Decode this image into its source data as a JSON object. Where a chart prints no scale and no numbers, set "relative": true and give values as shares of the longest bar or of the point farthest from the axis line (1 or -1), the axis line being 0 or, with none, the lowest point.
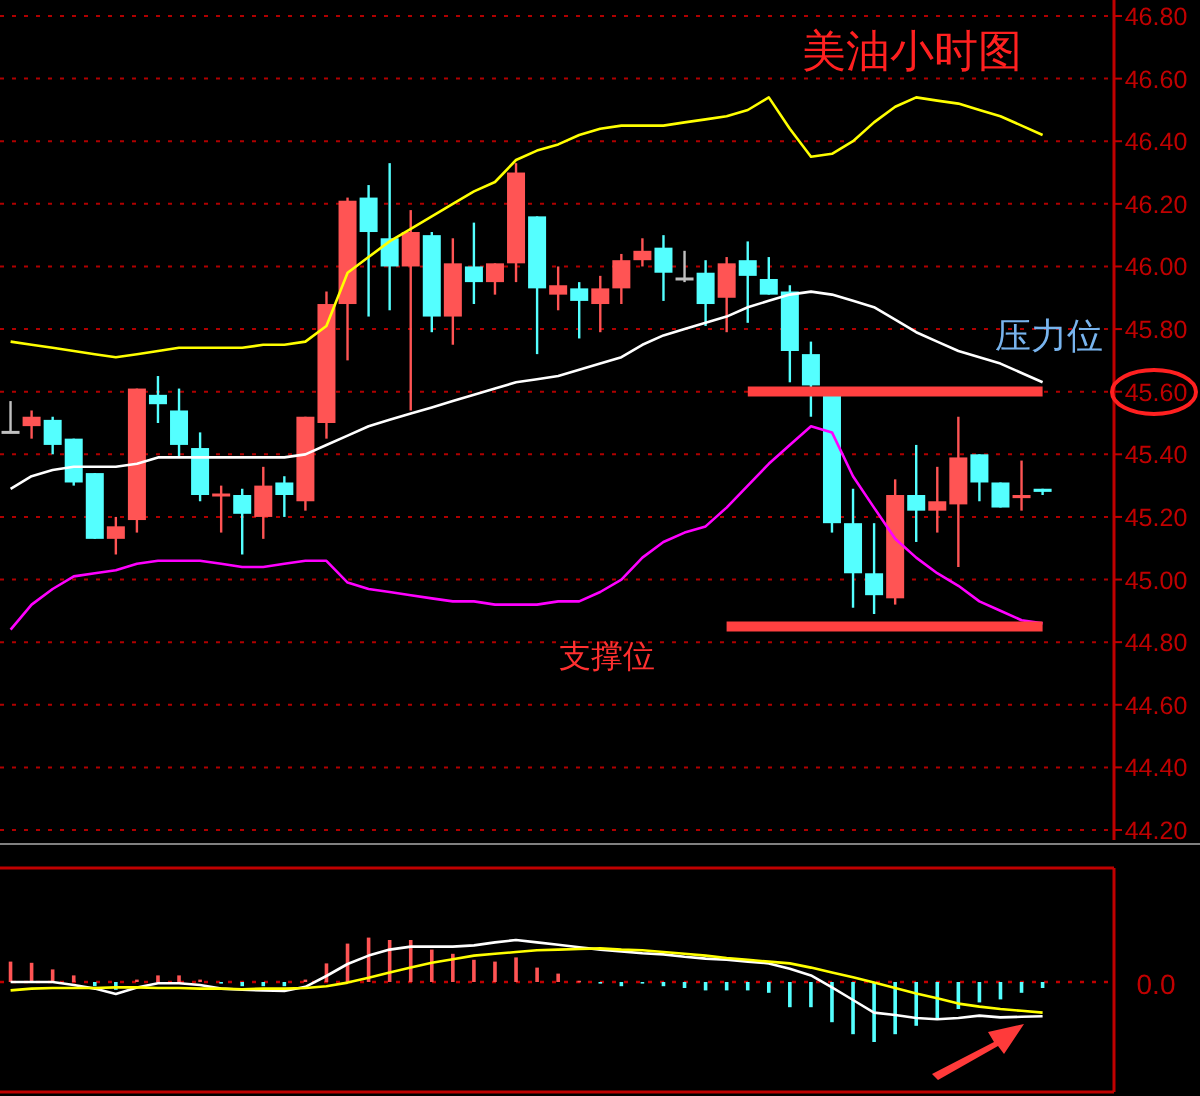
{
  "chart_data": [
    {
      "type": "candlestick",
      "title": "美油小时图",
      "categories": [
        null,
        null,
        null,
        null,
        null,
        null,
        null,
        null,
        null,
        null,
        null,
        null,
        null,
        null,
        null,
        null,
        null,
        null,
        null,
        null,
        null,
        null,
        null,
        null,
        null,
        null,
        null,
        null,
        null,
        null,
        null,
        null,
        null,
        null,
        null,
        null,
        null,
        null,
        null,
        null,
        null,
        null,
        null,
        null,
        null,
        null,
        null,
        null,
        null,
        null
      ],
      "ohlc": [
        [
          45.47,
          45.57,
          45.47,
          45.47
        ],
        [
          45.49,
          45.54,
          45.45,
          45.52
        ],
        [
          45.51,
          45.52,
          45.4,
          45.43
        ],
        [
          45.45,
          45.45,
          45.3,
          45.31
        ],
        [
          45.34,
          45.34,
          45.13,
          45.13
        ],
        [
          45.13,
          45.2,
          45.08,
          45.17
        ],
        [
          45.19,
          45.61,
          45.15,
          45.61
        ],
        [
          45.59,
          45.65,
          45.5,
          45.56
        ],
        [
          45.54,
          45.61,
          45.39,
          45.43
        ],
        [
          45.42,
          45.47,
          45.25,
          45.27
        ],
        [
          45.27,
          45.3,
          45.15,
          45.27
        ],
        [
          45.27,
          45.29,
          45.08,
          45.21
        ],
        [
          45.2,
          45.36,
          45.13,
          45.3
        ],
        [
          45.31,
          45.33,
          45.2,
          45.27
        ],
        [
          45.25,
          45.52,
          45.22,
          45.52
        ],
        [
          45.5,
          45.92,
          45.45,
          45.88
        ],
        [
          45.88,
          46.22,
          45.7,
          46.21
        ],
        [
          46.22,
          46.26,
          45.84,
          46.11
        ],
        [
          46.09,
          46.33,
          45.86,
          46.0
        ],
        [
          46.0,
          46.18,
          45.54,
          46.11
        ],
        [
          46.1,
          46.11,
          45.79,
          45.84
        ],
        [
          45.84,
          46.09,
          45.75,
          46.01
        ],
        [
          46.0,
          46.14,
          45.88,
          45.95
        ],
        [
          45.95,
          46.01,
          45.91,
          46.01
        ],
        [
          46.01,
          46.33,
          45.95,
          46.3
        ],
        [
          46.16,
          46.16,
          45.72,
          45.93
        ],
        [
          45.91,
          46.0,
          45.86,
          45.94
        ],
        [
          45.93,
          45.95,
          45.77,
          45.89
        ],
        [
          45.88,
          45.97,
          45.79,
          45.93
        ],
        [
          45.93,
          46.04,
          45.88,
          46.02
        ],
        [
          46.02,
          46.09,
          46.0,
          46.05
        ],
        [
          46.06,
          46.1,
          45.89,
          45.98
        ],
        [
          45.96,
          46.05,
          45.95,
          45.96
        ],
        [
          45.98,
          46.02,
          45.81,
          45.88
        ],
        [
          45.9,
          46.03,
          45.79,
          46.01
        ],
        [
          46.02,
          46.08,
          45.82,
          45.97
        ],
        [
          45.96,
          46.03,
          45.91,
          45.91
        ],
        [
          45.92,
          45.94,
          45.63,
          45.73
        ],
        [
          45.72,
          45.76,
          45.52,
          45.62
        ],
        [
          45.6,
          45.6,
          45.15,
          45.18
        ],
        [
          45.18,
          45.29,
          44.91,
          45.02
        ],
        [
          45.02,
          45.18,
          44.89,
          44.95
        ],
        [
          44.94,
          45.32,
          44.92,
          45.27
        ],
        [
          45.27,
          45.43,
          45.12,
          45.22
        ],
        [
          45.22,
          45.36,
          45.15,
          45.25
        ],
        [
          45.24,
          45.52,
          45.04,
          45.39
        ],
        [
          45.4,
          45.4,
          45.25,
          45.31
        ],
        [
          45.31,
          45.31,
          45.23,
          45.23
        ],
        [
          45.26,
          45.38,
          45.22,
          45.27
        ],
        [
          45.29,
          45.29,
          45.27,
          45.28
        ]
      ],
      "colors": [
        "#c0c0c0",
        "#ff5454",
        "#54ffff",
        "#54ffff",
        "#54ffff",
        "#ff5454",
        "#ff5454",
        "#54ffff",
        "#54ffff",
        "#54ffff",
        "#ff5454",
        "#54ffff",
        "#ff5454",
        "#54ffff",
        "#ff5454",
        "#ff5454",
        "#ff5454",
        "#54ffff",
        "#54ffff",
        "#ff5454",
        "#54ffff",
        "#ff5454",
        "#54ffff",
        "#ff5454",
        "#ff5454",
        "#54ffff",
        "#ff5454",
        "#54ffff",
        "#ff5454",
        "#ff5454",
        "#ff5454",
        "#54ffff",
        "#c0c0c0",
        "#54ffff",
        "#ff5454",
        "#54ffff",
        "#54ffff",
        "#54ffff",
        "#54ffff",
        "#54ffff",
        "#54ffff",
        "#54ffff",
        "#ff5454",
        "#54ffff",
        "#ff5454",
        "#ff5454",
        "#54ffff",
        "#54ffff",
        "#ff5454",
        "#54ffff"
      ],
      "series": [
        {
          "type": "line",
          "color": "#ffff00",
          "values": [
            45.76,
            45.75,
            45.74,
            45.73,
            45.72,
            45.71,
            45.72,
            45.73,
            45.74,
            45.74,
            45.74,
            45.74,
            45.75,
            45.75,
            45.76,
            45.81,
            45.98,
            46.03,
            46.08,
            46.12,
            46.16,
            46.2,
            46.24,
            46.27,
            46.34,
            46.37,
            46.39,
            46.42,
            46.44,
            46.45,
            46.45,
            46.45,
            46.46,
            46.47,
            46.48,
            46.5,
            46.54,
            46.44,
            46.35,
            46.36,
            46.4,
            46.46,
            46.51,
            46.54,
            46.53,
            46.52,
            46.5,
            46.48,
            46.45,
            46.42
          ]
        },
        {
          "type": "line",
          "color": "#ffffff",
          "values": [
            45.29,
            45.33,
            45.35,
            45.36,
            45.36,
            45.36,
            45.37,
            45.39,
            45.39,
            45.39,
            45.39,
            45.39,
            45.39,
            45.39,
            45.4,
            45.43,
            45.46,
            45.49,
            45.51,
            45.53,
            45.55,
            45.57,
            45.59,
            45.61,
            45.63,
            45.64,
            45.65,
            45.67,
            45.69,
            45.71,
            45.75,
            45.78,
            45.8,
            45.82,
            45.84,
            45.87,
            45.89,
            45.91,
            45.92,
            45.91,
            45.89,
            45.87,
            45.83,
            45.79,
            45.76,
            45.73,
            45.71,
            45.69,
            45.66,
            45.63
          ]
        },
        {
          "type": "line",
          "color": "#ff00ff",
          "values": [
            44.84,
            44.92,
            44.97,
            45.01,
            45.02,
            45.03,
            45.05,
            45.06,
            45.06,
            45.06,
            45.05,
            45.04,
            45.04,
            45.05,
            45.06,
            45.06,
            44.99,
            44.97,
            44.96,
            44.95,
            44.94,
            44.93,
            44.93,
            44.92,
            44.92,
            44.92,
            44.93,
            44.93,
            44.96,
            45.0,
            45.07,
            45.12,
            45.15,
            45.17,
            45.23,
            45.3,
            45.37,
            45.43,
            45.49,
            45.47,
            45.33,
            45.23,
            45.13,
            45.07,
            45.02,
            44.98,
            44.93,
            44.9,
            44.87,
            44.86
          ]
        },
        {
          "type": "line",
          "name": "压力位",
          "color": "#ff4040",
          "values": [
            null,
            null,
            null,
            null,
            null,
            null,
            null,
            null,
            null,
            null,
            null,
            null,
            null,
            null,
            null,
            null,
            null,
            null,
            null,
            null,
            null,
            null,
            null,
            null,
            null,
            null,
            null,
            null,
            null,
            null,
            null,
            null,
            null,
            null,
            null,
            45.6,
            45.6,
            45.6,
            45.6,
            45.6,
            45.6,
            45.6,
            45.6,
            45.6,
            45.6,
            45.6,
            45.6,
            45.6,
            45.6,
            45.6
          ]
        },
        {
          "type": "line",
          "name": "支撑位",
          "color": "#ff4040",
          "values": [
            null,
            null,
            null,
            null,
            null,
            null,
            null,
            null,
            null,
            null,
            null,
            null,
            null,
            null,
            null,
            null,
            null,
            null,
            null,
            null,
            null,
            null,
            null,
            null,
            null,
            null,
            null,
            null,
            null,
            null,
            null,
            null,
            null,
            null,
            44.85,
            44.85,
            44.85,
            44.85,
            44.85,
            44.85,
            44.85,
            44.85,
            44.85,
            44.85,
            44.85,
            44.85,
            44.85,
            44.85,
            44.85,
            44.85
          ]
        }
      ],
      "ylim": [
        44.2,
        46.8
      ],
      "yticks": [
        {
          "value": 44.2,
          "label": "44.20"
        },
        {
          "value": 44.4,
          "label": "44.40"
        },
        {
          "value": 44.6,
          "label": "44.60"
        },
        {
          "value": 44.8,
          "label": "44.80"
        },
        {
          "value": 45.0,
          "label": "45.00"
        },
        {
          "value": 45.2,
          "label": "45.20"
        },
        {
          "value": 45.4,
          "label": "45.40"
        },
        {
          "value": 45.6,
          "label": "45.60"
        },
        {
          "value": 45.8,
          "label": "45.80"
        },
        {
          "value": 46.0,
          "label": "46.00"
        },
        {
          "value": 46.2,
          "label": "46.20"
        },
        {
          "value": 46.4,
          "label": "46.40"
        },
        {
          "value": 46.6,
          "label": "46.60"
        },
        {
          "value": 46.8,
          "label": "46.80"
        }
      ],
      "grid": "y",
      "marker": "none"
    },
    {
      "type": "bar",
      "relative": true,
      "categories": [
        null,
        null,
        null,
        null,
        null,
        null,
        null,
        null,
        null,
        null,
        null,
        null,
        null,
        null,
        null,
        null,
        null,
        null,
        null,
        null,
        null,
        null,
        null,
        null,
        null,
        null,
        null,
        null,
        null,
        null,
        null,
        null,
        null,
        null,
        null,
        null,
        null,
        null,
        null,
        null,
        null,
        null,
        null,
        null,
        null,
        null,
        null,
        null,
        null,
        null
      ],
      "series": [
        {
          "type": "bar",
          "values": [
            0.34,
            0.32,
            0.21,
            0.11,
            -0.07,
            -0.13,
            0.04,
            0.11,
            0.11,
            0.04,
            -0.02,
            -0.07,
            -0.07,
            -0.07,
            0.04,
            0.31,
            0.64,
            0.74,
            0.7,
            0.7,
            0.54,
            0.47,
            0.37,
            0.34,
            0.41,
            0.24,
            0.14,
            0.02,
            -0.02,
            -0.07,
            -0.02,
            -0.07,
            -0.1,
            -0.14,
            -0.14,
            -0.14,
            -0.18,
            -0.42,
            -0.42,
            -0.67,
            -0.87,
            -1,
            -0.87,
            -0.73,
            -0.62,
            -0.45,
            -0.34,
            -0.29,
            -0.18,
            -0.1
          ],
          "colors": [
            "#ff5454",
            "#ff5454",
            "#ff5454",
            "#ff5454",
            "#54ffff",
            "#54ffff",
            "#ff5454",
            "#ff5454",
            "#ff5454",
            "#ff5454",
            "#54ffff",
            "#54ffff",
            "#54ffff",
            "#54ffff",
            "#ff5454",
            "#ff5454",
            "#ff5454",
            "#ff5454",
            "#ff5454",
            "#ff5454",
            "#ff5454",
            "#ff5454",
            "#ff5454",
            "#ff5454",
            "#ff5454",
            "#ff5454",
            "#ff5454",
            "#ff5454",
            "#54ffff",
            "#54ffff",
            "#54ffff",
            "#54ffff",
            "#54ffff",
            "#54ffff",
            "#54ffff",
            "#54ffff",
            "#54ffff",
            "#54ffff",
            "#54ffff",
            "#54ffff",
            "#54ffff",
            "#54ffff",
            "#54ffff",
            "#54ffff",
            "#54ffff",
            "#54ffff",
            "#54ffff",
            "#54ffff",
            "#54ffff",
            "#54ffff"
          ]
        },
        {
          "type": "line",
          "color": "#ffffff",
          "values": [
            0,
            0,
            0,
            -0.05,
            -0.11,
            -0.2,
            -0.09,
            -0.02,
            -0.02,
            -0.05,
            -0.11,
            -0.13,
            -0.14,
            -0.15,
            -0.08,
            0.1,
            0.3,
            0.44,
            0.54,
            0.59,
            0.59,
            0.59,
            0.61,
            0.66,
            0.7,
            0.66,
            0.62,
            0.58,
            0.54,
            0.51,
            0.48,
            0.46,
            0.42,
            0.39,
            0.37,
            0.34,
            0.31,
            0.22,
            0.11,
            -0.09,
            -0.3,
            -0.51,
            -0.55,
            -0.6,
            -0.62,
            -0.6,
            -0.56,
            -0.59,
            -0.58,
            -0.57
          ]
        },
        {
          "type": "line",
          "color": "#ffff00",
          "values": [
            -0.14,
            -0.11,
            -0.1,
            -0.1,
            -0.1,
            -0.09,
            -0.09,
            -0.1,
            -0.1,
            -0.11,
            -0.11,
            -0.12,
            -0.11,
            -0.11,
            -0.1,
            -0.07,
            -0.01,
            0.07,
            0.16,
            0.24,
            0.32,
            0.38,
            0.44,
            0.47,
            0.5,
            0.53,
            0.54,
            0.55,
            0.56,
            0.54,
            0.53,
            0.5,
            0.47,
            0.44,
            0.4,
            0.37,
            0.34,
            0.31,
            0.24,
            0.16,
            0.08,
            -0.01,
            -0.1,
            -0.19,
            -0.27,
            -0.36,
            -0.41,
            -0.45,
            -0.48,
            -0.51
          ]
        }
      ],
      "ref_lines": [
        {
          "axis": "y",
          "value": 0,
          "label": "0.0",
          "color": "#c00000",
          "line_style": "dotted"
        }
      ],
      "marker": "none"
    }
  ]
}
